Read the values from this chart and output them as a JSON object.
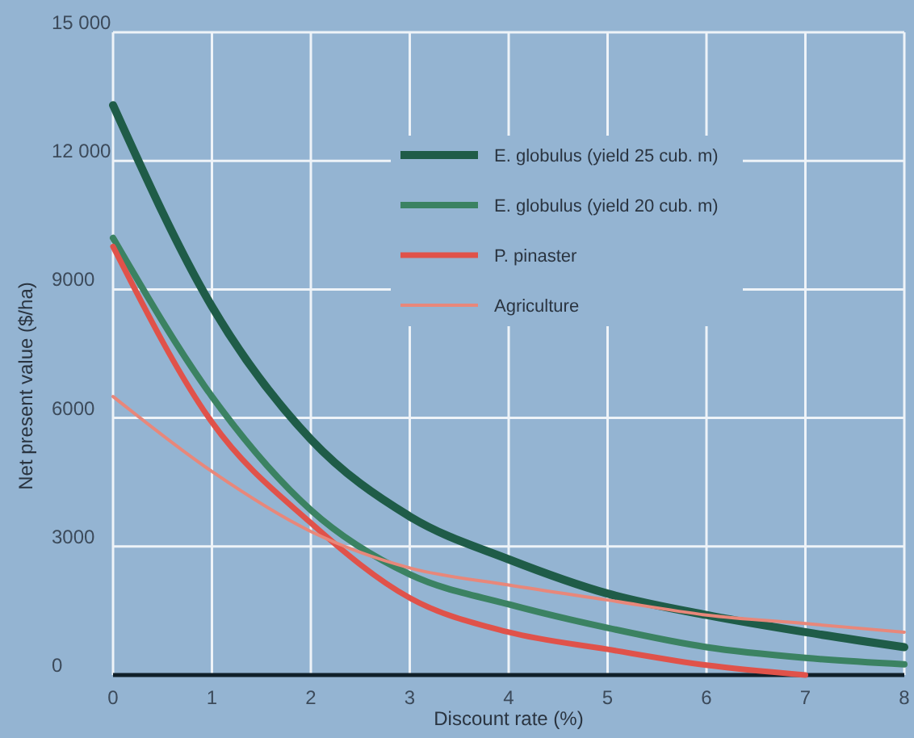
{
  "chart_data": {
    "type": "line",
    "xlabel": "Discount rate (%)",
    "ylabel": "Net present value ($/ha)",
    "x": [
      0,
      1,
      2,
      3,
      4,
      5,
      6,
      7,
      8
    ],
    "xlim": [
      0,
      8
    ],
    "xticks": [
      0,
      1,
      2,
      3,
      4,
      5,
      6,
      7,
      8
    ],
    "ylim": [
      0,
      15000
    ],
    "yticks": [
      0,
      3000,
      6000,
      9000,
      {
        "value": 12000,
        "label": "12 000"
      },
      {
        "value": 15000,
        "label": "15 000"
      }
    ],
    "grid": true,
    "legend": "top right",
    "line_style": "solid",
    "series": [
      {
        "name": "E. globulus (yield 25 cub. m)",
        "color": "#1f5c48",
        "values": [
          13300,
          8600,
          5500,
          3700,
          2700,
          1900,
          1400,
          1000,
          650
        ]
      },
      {
        "name": "E. globulus (yield 20 cub. m)",
        "color": "#3b8262",
        "values": [
          10200,
          6500,
          3850,
          2350,
          1650,
          1100,
          650,
          400,
          250
        ]
      },
      {
        "name": "P. pinaster",
        "color": "#e0524a",
        "values": [
          10000,
          5900,
          3550,
          1800,
          1000,
          600,
          230,
          0,
          null
        ]
      },
      {
        "name": "Agriculture",
        "color": "#e8877a",
        "values": [
          6500,
          4750,
          3350,
          2500,
          2100,
          1750,
          1400,
          1200,
          1000
        ]
      }
    ]
  }
}
